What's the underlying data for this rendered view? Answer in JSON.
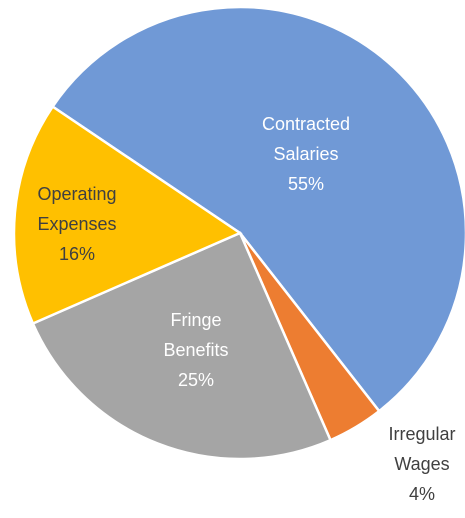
{
  "chart_data": {
    "type": "pie",
    "categories": [
      "Contracted Salaries",
      "Irregular Wages",
      "Fringe Benefits",
      "Operating Expenses"
    ],
    "values": [
      55,
      4,
      25,
      16
    ],
    "value_labels": [
      "55%",
      "4%",
      "25%",
      "16%"
    ],
    "colors": [
      "#7099d6",
      "#ed7d31",
      "#a5a5a5",
      "#ffc000"
    ]
  }
}
